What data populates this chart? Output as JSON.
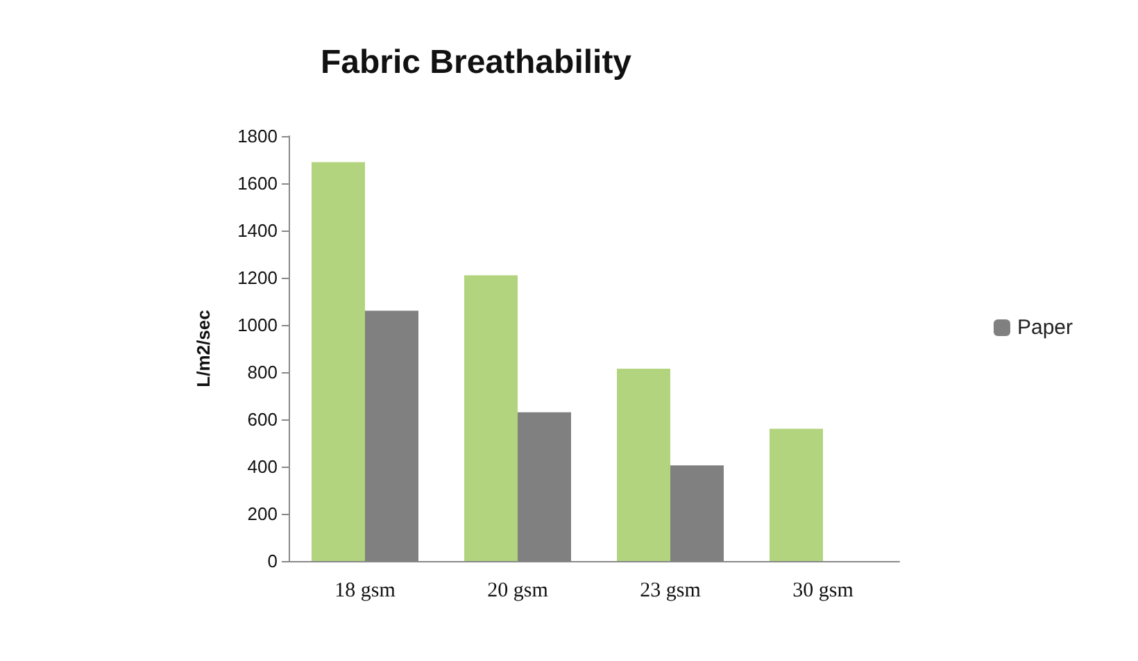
{
  "chart_data": {
    "type": "bar",
    "title": "Fabric Breathability",
    "ylabel": "L/m2/sec",
    "categories": [
      "18 gsm",
      "20 gsm",
      "23 gsm",
      "30 gsm"
    ],
    "series": [
      {
        "color": "#b3d47f",
        "values": [
          1690,
          1210,
          815,
          560
        ]
      },
      {
        "name": "Paper",
        "color": "#808080",
        "values": [
          1060,
          630,
          405,
          null
        ]
      }
    ],
    "ylim": [
      0,
      1800
    ],
    "yticks": [
      0,
      200,
      400,
      600,
      800,
      1000,
      1200,
      1400,
      1600,
      1800
    ],
    "grid": false,
    "legend": "right"
  }
}
